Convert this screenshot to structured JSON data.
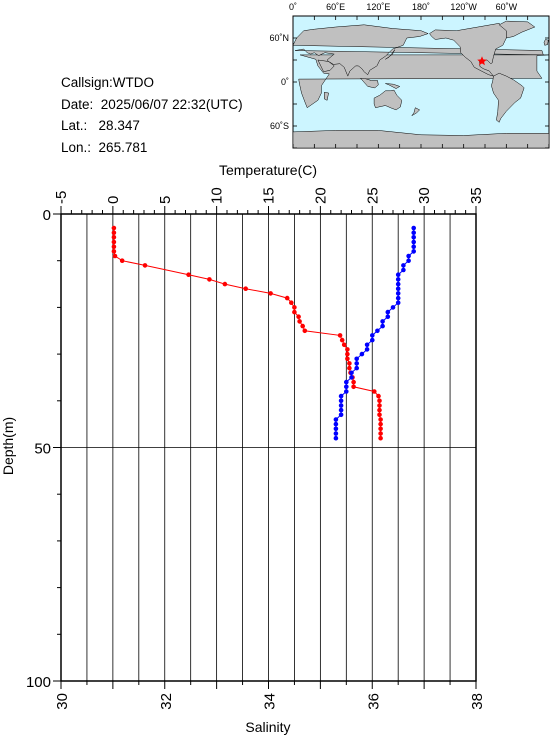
{
  "station": {
    "callsign_label": "Callsign:",
    "callsign": "WTDO",
    "date_label": "Date:",
    "date": "2025/06/07 22:32(UTC)",
    "lat_label": "Lat.:",
    "lat": "28.347",
    "lon_label": "Lon.:",
    "lon": "265.781"
  },
  "map": {
    "top_labels": [
      "0˚",
      "60˚E",
      "120˚E",
      "180˚",
      "120˚W",
      "60˚W"
    ],
    "side_labels": [
      "60˚N",
      "0˚",
      "60˚S"
    ],
    "ocean_color": "#ccf5ff",
    "land_color": "#c0c0c0",
    "marker_color": "#ff0000",
    "marker_lon": 265.781,
    "marker_lat": 28.347
  },
  "chart_data": {
    "type": "line",
    "title": "",
    "top_axis": {
      "label": "Temperature(C)",
      "range": [
        -5,
        35
      ],
      "ticks": [
        "-5",
        "0",
        "5",
        "10",
        "15",
        "20",
        "25",
        "30",
        "35"
      ]
    },
    "bottom_axis": {
      "label": "Salinity",
      "range": [
        30,
        38
      ],
      "ticks": [
        "30",
        "32",
        "34",
        "36",
        "38"
      ]
    },
    "y_axis": {
      "label": "Depth(m)",
      "range": [
        0,
        100
      ],
      "inverted": true,
      "ticks": [
        "0",
        "50",
        "100"
      ]
    },
    "grid": {
      "vertical": true,
      "horizontal_at": [
        50
      ]
    },
    "series": [
      {
        "axis": "temperature",
        "color": "#ff0000",
        "depth": [
          3,
          4,
          5,
          6,
          7,
          8,
          9,
          10,
          11,
          13,
          14,
          15,
          16,
          17,
          18,
          19,
          20,
          21,
          22,
          23,
          24,
          25,
          26,
          27,
          28,
          29,
          30,
          31,
          32,
          33,
          34,
          35,
          36,
          37,
          38,
          39,
          40,
          41,
          42,
          43,
          44,
          45,
          46,
          47,
          48
        ],
        "values": [
          0.1,
          0.1,
          0.1,
          0.1,
          0.1,
          0.1,
          0.2,
          0.9,
          3.1,
          7.3,
          9.3,
          10.8,
          12.8,
          15.2,
          16.8,
          17.2,
          17.5,
          17.5,
          17.9,
          18.0,
          18.3,
          18.5,
          21.9,
          22.1,
          22.3,
          22.6,
          22.6,
          22.6,
          22.8,
          22.8,
          22.9,
          23.1,
          23.2,
          23.2,
          25.2,
          25.6,
          25.7,
          25.7,
          25.7,
          25.7,
          25.8,
          25.8,
          25.8,
          25.8,
          25.8
        ]
      },
      {
        "axis": "salinity",
        "color": "#0000ff",
        "depth": [
          3,
          4,
          5,
          6,
          7,
          8,
          9,
          10,
          11,
          12,
          13,
          14,
          15,
          16,
          17,
          18,
          19,
          20,
          21,
          22,
          23,
          24,
          25,
          26,
          27,
          28,
          29,
          30,
          31,
          32,
          33,
          34,
          35,
          36,
          37,
          38,
          39,
          40,
          41,
          42,
          43,
          44,
          45,
          46,
          47,
          48
        ],
        "values": [
          36.8,
          36.8,
          36.8,
          36.8,
          36.8,
          36.8,
          36.7,
          36.7,
          36.6,
          36.6,
          36.5,
          36.5,
          36.5,
          36.5,
          36.5,
          36.5,
          36.5,
          36.4,
          36.3,
          36.3,
          36.2,
          36.2,
          36.1,
          36.0,
          36.0,
          35.9,
          35.9,
          35.8,
          35.7,
          35.7,
          35.7,
          35.6,
          35.6,
          35.5,
          35.5,
          35.5,
          35.4,
          35.4,
          35.4,
          35.4,
          35.4,
          35.3,
          35.3,
          35.3,
          35.3,
          35.3
        ]
      }
    ]
  }
}
